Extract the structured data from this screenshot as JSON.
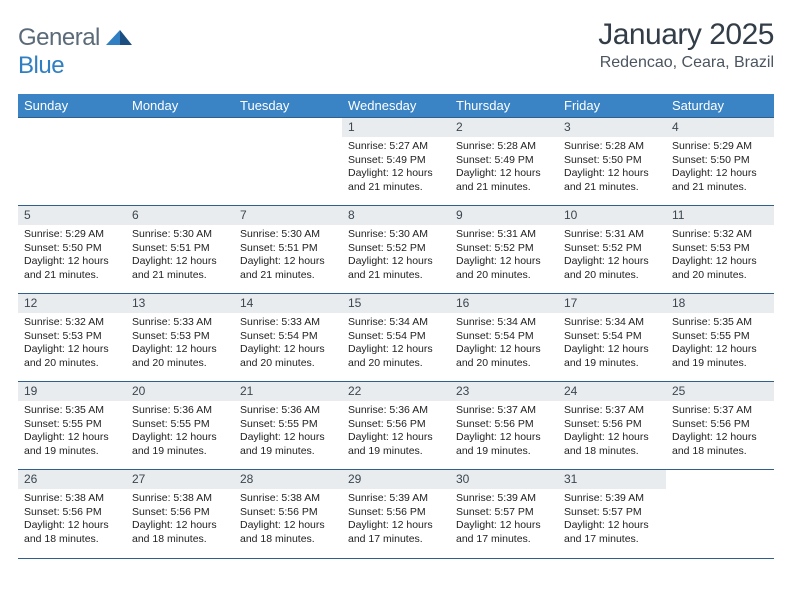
{
  "brand": {
    "text_a": "General",
    "text_b": "Blue"
  },
  "title": "January 2025",
  "location": "Redencao, Ceara, Brazil",
  "colors": {
    "header_bg": "#3a83c4",
    "header_text": "#ffffff",
    "rule": "#2f5f8a",
    "daynum_bg": "#e9ecef",
    "logo_gray": "#5a6a78",
    "logo_blue": "#2f7fc2"
  },
  "weekdays": [
    "Sunday",
    "Monday",
    "Tuesday",
    "Wednesday",
    "Thursday",
    "Friday",
    "Saturday"
  ],
  "weeks": [
    [
      null,
      null,
      null,
      {
        "n": "1",
        "sr": "5:27 AM",
        "ss": "5:49 PM",
        "dl": "12 hours and 21 minutes."
      },
      {
        "n": "2",
        "sr": "5:28 AM",
        "ss": "5:49 PM",
        "dl": "12 hours and 21 minutes."
      },
      {
        "n": "3",
        "sr": "5:28 AM",
        "ss": "5:50 PM",
        "dl": "12 hours and 21 minutes."
      },
      {
        "n": "4",
        "sr": "5:29 AM",
        "ss": "5:50 PM",
        "dl": "12 hours and 21 minutes."
      }
    ],
    [
      {
        "n": "5",
        "sr": "5:29 AM",
        "ss": "5:50 PM",
        "dl": "12 hours and 21 minutes."
      },
      {
        "n": "6",
        "sr": "5:30 AM",
        "ss": "5:51 PM",
        "dl": "12 hours and 21 minutes."
      },
      {
        "n": "7",
        "sr": "5:30 AM",
        "ss": "5:51 PM",
        "dl": "12 hours and 21 minutes."
      },
      {
        "n": "8",
        "sr": "5:30 AM",
        "ss": "5:52 PM",
        "dl": "12 hours and 21 minutes."
      },
      {
        "n": "9",
        "sr": "5:31 AM",
        "ss": "5:52 PM",
        "dl": "12 hours and 20 minutes."
      },
      {
        "n": "10",
        "sr": "5:31 AM",
        "ss": "5:52 PM",
        "dl": "12 hours and 20 minutes."
      },
      {
        "n": "11",
        "sr": "5:32 AM",
        "ss": "5:53 PM",
        "dl": "12 hours and 20 minutes."
      }
    ],
    [
      {
        "n": "12",
        "sr": "5:32 AM",
        "ss": "5:53 PM",
        "dl": "12 hours and 20 minutes."
      },
      {
        "n": "13",
        "sr": "5:33 AM",
        "ss": "5:53 PM",
        "dl": "12 hours and 20 minutes."
      },
      {
        "n": "14",
        "sr": "5:33 AM",
        "ss": "5:54 PM",
        "dl": "12 hours and 20 minutes."
      },
      {
        "n": "15",
        "sr": "5:34 AM",
        "ss": "5:54 PM",
        "dl": "12 hours and 20 minutes."
      },
      {
        "n": "16",
        "sr": "5:34 AM",
        "ss": "5:54 PM",
        "dl": "12 hours and 20 minutes."
      },
      {
        "n": "17",
        "sr": "5:34 AM",
        "ss": "5:54 PM",
        "dl": "12 hours and 19 minutes."
      },
      {
        "n": "18",
        "sr": "5:35 AM",
        "ss": "5:55 PM",
        "dl": "12 hours and 19 minutes."
      }
    ],
    [
      {
        "n": "19",
        "sr": "5:35 AM",
        "ss": "5:55 PM",
        "dl": "12 hours and 19 minutes."
      },
      {
        "n": "20",
        "sr": "5:36 AM",
        "ss": "5:55 PM",
        "dl": "12 hours and 19 minutes."
      },
      {
        "n": "21",
        "sr": "5:36 AM",
        "ss": "5:55 PM",
        "dl": "12 hours and 19 minutes."
      },
      {
        "n": "22",
        "sr": "5:36 AM",
        "ss": "5:56 PM",
        "dl": "12 hours and 19 minutes."
      },
      {
        "n": "23",
        "sr": "5:37 AM",
        "ss": "5:56 PM",
        "dl": "12 hours and 19 minutes."
      },
      {
        "n": "24",
        "sr": "5:37 AM",
        "ss": "5:56 PM",
        "dl": "12 hours and 18 minutes."
      },
      {
        "n": "25",
        "sr": "5:37 AM",
        "ss": "5:56 PM",
        "dl": "12 hours and 18 minutes."
      }
    ],
    [
      {
        "n": "26",
        "sr": "5:38 AM",
        "ss": "5:56 PM",
        "dl": "12 hours and 18 minutes."
      },
      {
        "n": "27",
        "sr": "5:38 AM",
        "ss": "5:56 PM",
        "dl": "12 hours and 18 minutes."
      },
      {
        "n": "28",
        "sr": "5:38 AM",
        "ss": "5:56 PM",
        "dl": "12 hours and 18 minutes."
      },
      {
        "n": "29",
        "sr": "5:39 AM",
        "ss": "5:56 PM",
        "dl": "12 hours and 17 minutes."
      },
      {
        "n": "30",
        "sr": "5:39 AM",
        "ss": "5:57 PM",
        "dl": "12 hours and 17 minutes."
      },
      {
        "n": "31",
        "sr": "5:39 AM",
        "ss": "5:57 PM",
        "dl": "12 hours and 17 minutes."
      },
      null
    ]
  ],
  "labels": {
    "sunrise": "Sunrise:",
    "sunset": "Sunset:",
    "daylight": "Daylight:"
  }
}
